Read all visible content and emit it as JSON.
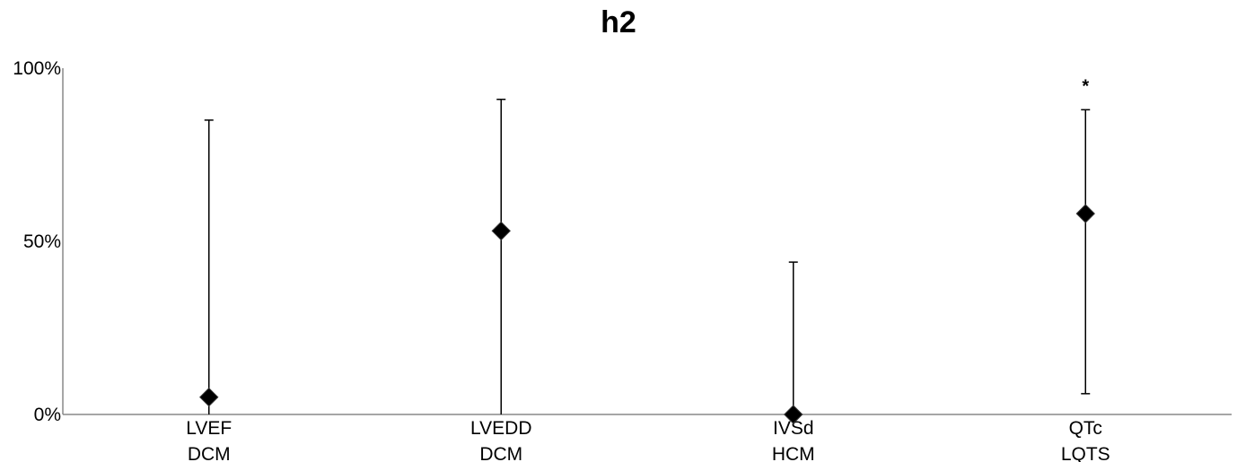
{
  "chart_data": {
    "type": "scatter",
    "title": "h2",
    "xlabel": "",
    "ylabel": "",
    "ylim": [
      0,
      100
    ],
    "yticks": [
      0,
      50,
      100
    ],
    "ytick_labels": [
      "0%",
      "50%",
      "100%"
    ],
    "grid": false,
    "categories": [
      [
        "LVEF",
        "DCM"
      ],
      [
        "LVEDD",
        "DCM"
      ],
      [
        "IVSd",
        "HCM"
      ],
      [
        "QTc",
        "LQTS"
      ]
    ],
    "values": [
      5,
      53,
      0,
      58
    ],
    "lower": [
      0,
      0,
      0,
      6
    ],
    "upper": [
      85,
      91,
      44,
      88
    ],
    "annotations": [
      "",
      "",
      "",
      "*"
    ]
  }
}
